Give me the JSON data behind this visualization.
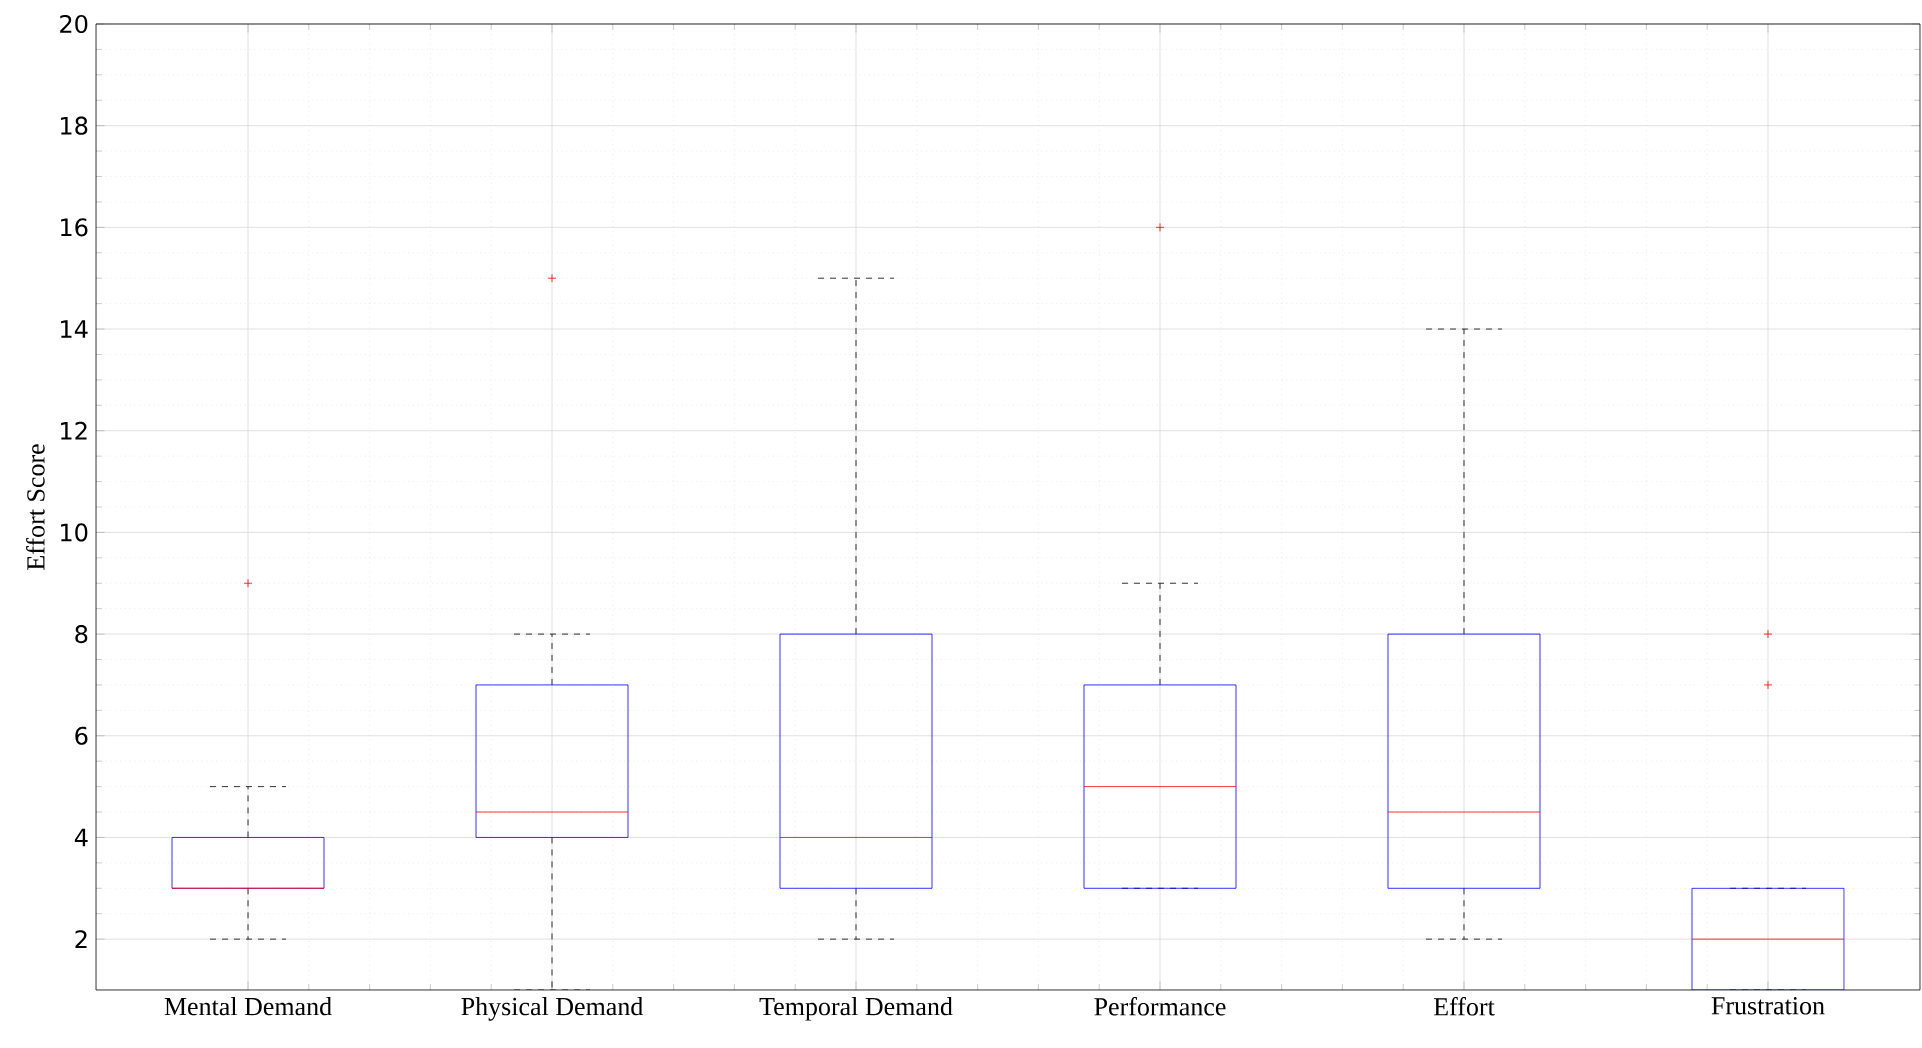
{
  "chart_data": {
    "type": "box",
    "ylabel": "Effort Score",
    "categories": [
      "Mental Demand",
      "Physical Demand",
      "Temporal Demand",
      "Performance",
      "Effort",
      "Frustration"
    ],
    "boxes": [
      {
        "low": 2,
        "q1": 3,
        "median": 3,
        "q3": 4,
        "high": 5,
        "outliers": [
          9
        ]
      },
      {
        "low": 1,
        "q1": 4,
        "median": 4.5,
        "q3": 7,
        "high": 8,
        "outliers": [
          15
        ]
      },
      {
        "low": 2,
        "q1": 3,
        "median": 4,
        "q3": 8,
        "high": 15
      },
      {
        "low": 3,
        "q1": 3,
        "median": 5,
        "q3": 7,
        "high": 9,
        "outliers": [
          16
        ]
      },
      {
        "low": 2,
        "q1": 3,
        "median": 4.5,
        "q3": 8,
        "high": 14
      },
      {
        "low": 1,
        "q1": 1,
        "median": 2,
        "q3": 3,
        "high": 3,
        "outliers": [
          7,
          8
        ]
      }
    ],
    "color": "#0000ff",
    "ylim": [
      1,
      20
    ],
    "yticks": [
      2,
      4,
      6,
      8,
      10,
      12,
      14,
      16,
      18,
      20
    ],
    "grid": true
  }
}
